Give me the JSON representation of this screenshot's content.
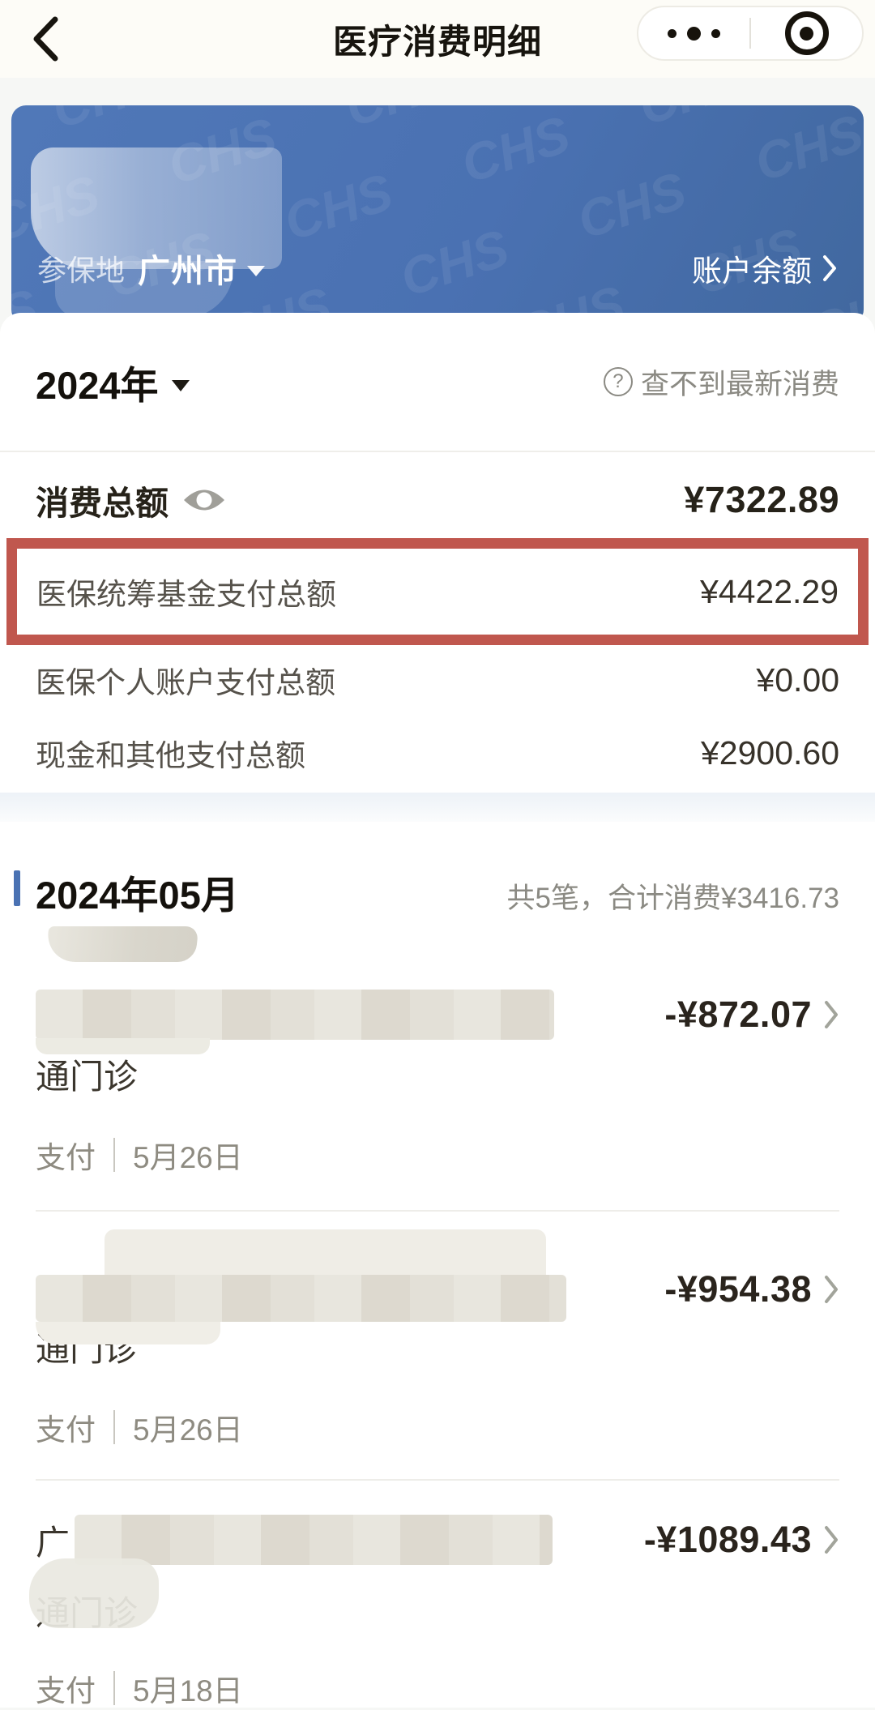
{
  "header": {
    "title": "医疗消费明细",
    "back_icon": "chevron-left",
    "more_icon": "three-dots",
    "close_icon": "target-circle"
  },
  "banner": {
    "bg_color": "#4a71b2",
    "watermark_text": "CHS",
    "region_label": "参保地",
    "region_value": "广州市",
    "balance_link": "账户余额"
  },
  "year_bar": {
    "year": "2024年",
    "help_icon": "question-circle",
    "notice": "查不到最新消费"
  },
  "totals": {
    "label": "消费总额",
    "eye_icon": "eye-open",
    "amount": "¥7322.89",
    "highlight_color": "#c0574e",
    "rows": [
      {
        "label": "医保统筹基金支付总额",
        "amount": "¥4422.29",
        "highlighted": true
      },
      {
        "label": "医保个人账户支付总额",
        "amount": "¥0.00",
        "highlighted": false
      },
      {
        "label": "现金和其他支付总额",
        "amount": "¥2900.60",
        "highlighted": false
      }
    ]
  },
  "month_section": {
    "title": "2024年05月",
    "accent_color": "#4a72b3",
    "summary": "共5笔，合计消费¥3416.73",
    "items": [
      {
        "name_prefix": "",
        "name_line2": "通门诊",
        "amount": "-¥872.07",
        "meta_action": "支付",
        "meta_date": "5月26日"
      },
      {
        "name_prefix": "",
        "name_line2": "通门诊",
        "amount": "-¥954.38",
        "meta_action": "支付",
        "meta_date": "5月26日"
      },
      {
        "name_prefix": "广",
        "name_line2": "通门诊",
        "amount": "-¥1089.43",
        "meta_action": "支付",
        "meta_date": "5月18日"
      }
    ]
  }
}
